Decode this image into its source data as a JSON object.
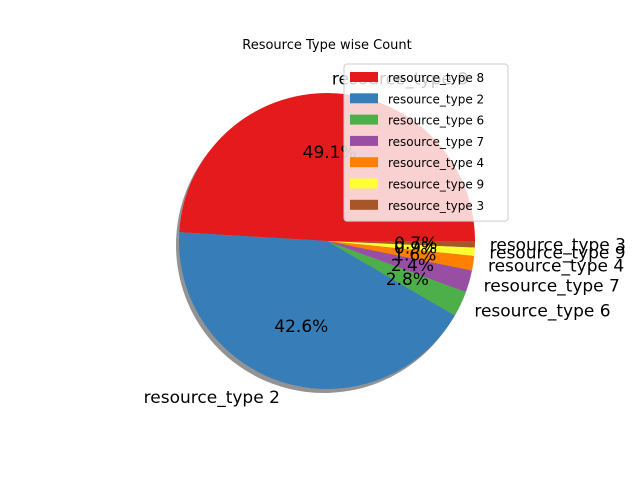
{
  "chart_data": {
    "type": "pie",
    "title": "Resource Type wise Count",
    "slices": [
      {
        "label": "resource_type 8",
        "percent": 49.1,
        "pct_text": "49.1%",
        "color": "#e41a1c"
      },
      {
        "label": "resource_type 2",
        "percent": 42.6,
        "pct_text": "42.6%",
        "color": "#377eb8"
      },
      {
        "label": "resource_type 6",
        "percent": 2.8,
        "pct_text": "2.8%",
        "color": "#4daf4a"
      },
      {
        "label": "resource_type 7",
        "percent": 2.4,
        "pct_text": "2.4%",
        "color": "#984ea3"
      },
      {
        "label": "resource_type 4",
        "percent": 1.6,
        "pct_text": "1.6%",
        "color": "#ff7f00"
      },
      {
        "label": "resource_type 9",
        "percent": 0.9,
        "pct_text": "0.9%",
        "color": "#ffff33"
      },
      {
        "label": "resource_type 3",
        "percent": 0.7,
        "pct_text": "0.7%",
        "color": "#a65628"
      }
    ],
    "start_angle_deg": 0,
    "direction": "counterclockwise",
    "shadow": true,
    "legend": {
      "placement": "upper-right",
      "entries": [
        "resource_type 8",
        "resource_type 2",
        "resource_type 6",
        "resource_type 7",
        "resource_type 4",
        "resource_type 9",
        "resource_type 3"
      ]
    }
  }
}
